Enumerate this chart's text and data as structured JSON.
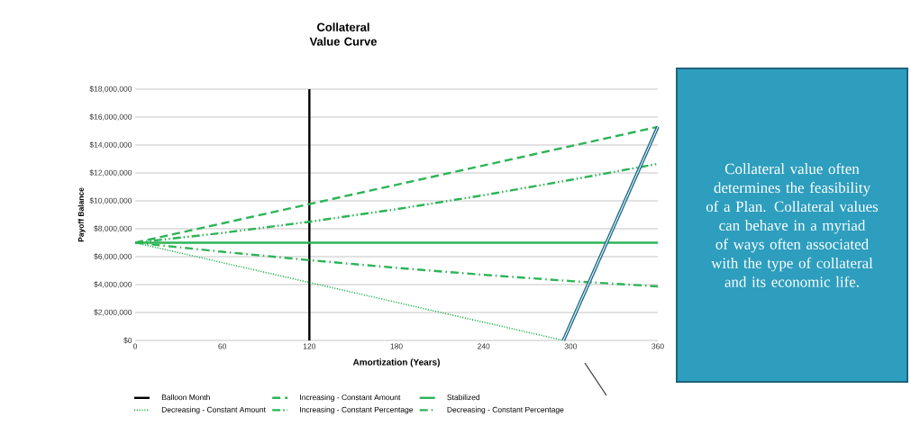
{
  "chart_data": {
    "type": "line",
    "title": "Collateral Value Curve",
    "xlabel": "Amortization (Years)",
    "ylabel": "Payoff Balance",
    "xlim": [
      0,
      360
    ],
    "xticks": [
      0,
      60,
      120,
      180,
      240,
      300,
      360
    ],
    "ylim": [
      0,
      18000000
    ],
    "yticks": [
      {
        "value": 0,
        "label": "$0"
      },
      {
        "value": 2000000,
        "label": "$2,000,000"
      },
      {
        "value": 4000000,
        "label": "$4,000,000"
      },
      {
        "value": 6000000,
        "label": "$6,000,000"
      },
      {
        "value": 8000000,
        "label": "$8,000,000"
      },
      {
        "value": 10000000,
        "label": "$10,000,000"
      },
      {
        "value": 12000000,
        "label": "$12,000,000"
      },
      {
        "value": 14000000,
        "label": "$14,000,000"
      },
      {
        "value": 16000000,
        "label": "$16,000,000"
      },
      {
        "value": 18000000,
        "label": "$18,000,000"
      }
    ],
    "grid": "y",
    "legend": "bottom",
    "series": [
      {
        "name": "Balloon Month",
        "color": "#000000",
        "line_style": "solid",
        "x": [
          120,
          120
        ],
        "values": [
          0,
          18000000
        ]
      },
      {
        "name": "Increasing - Constant Amount",
        "color": "#2db457",
        "line_style": "dashed",
        "x": [
          0,
          360
        ],
        "values": [
          7000000,
          15300000
        ]
      },
      {
        "name": "Stabilized",
        "color": "#2db457",
        "line_style": "solid",
        "x": [
          0,
          360
        ],
        "values": [
          7000000,
          7000000
        ]
      },
      {
        "name": "Decreasing - Constant Amount",
        "color": "#2db457",
        "line_style": "dotted",
        "x": [
          0,
          295
        ],
        "values": [
          7000000,
          0
        ]
      },
      {
        "name": "Increasing - Constant Percentage",
        "color": "#2db457",
        "line_style": "dashdotdotted",
        "x": [
          0,
          60,
          120,
          180,
          240,
          300,
          360
        ],
        "values": [
          7000000,
          7700000,
          8500000,
          9400000,
          10400000,
          11500000,
          12650000
        ]
      },
      {
        "name": "Decreasing - Constant Percentage",
        "color": "#2db457",
        "line_style": "dashdotted",
        "x": [
          0,
          60,
          120,
          180,
          240,
          300,
          360
        ],
        "values": [
          7000000,
          6350000,
          5750000,
          5200000,
          4700000,
          4250000,
          3870000
        ]
      }
    ],
    "annotations": [
      "Collateral value often determines the feasibility of a Plan. Collateral values can behave in a myriad of ways often associated with the type of collateral and its economic life."
    ]
  }
}
